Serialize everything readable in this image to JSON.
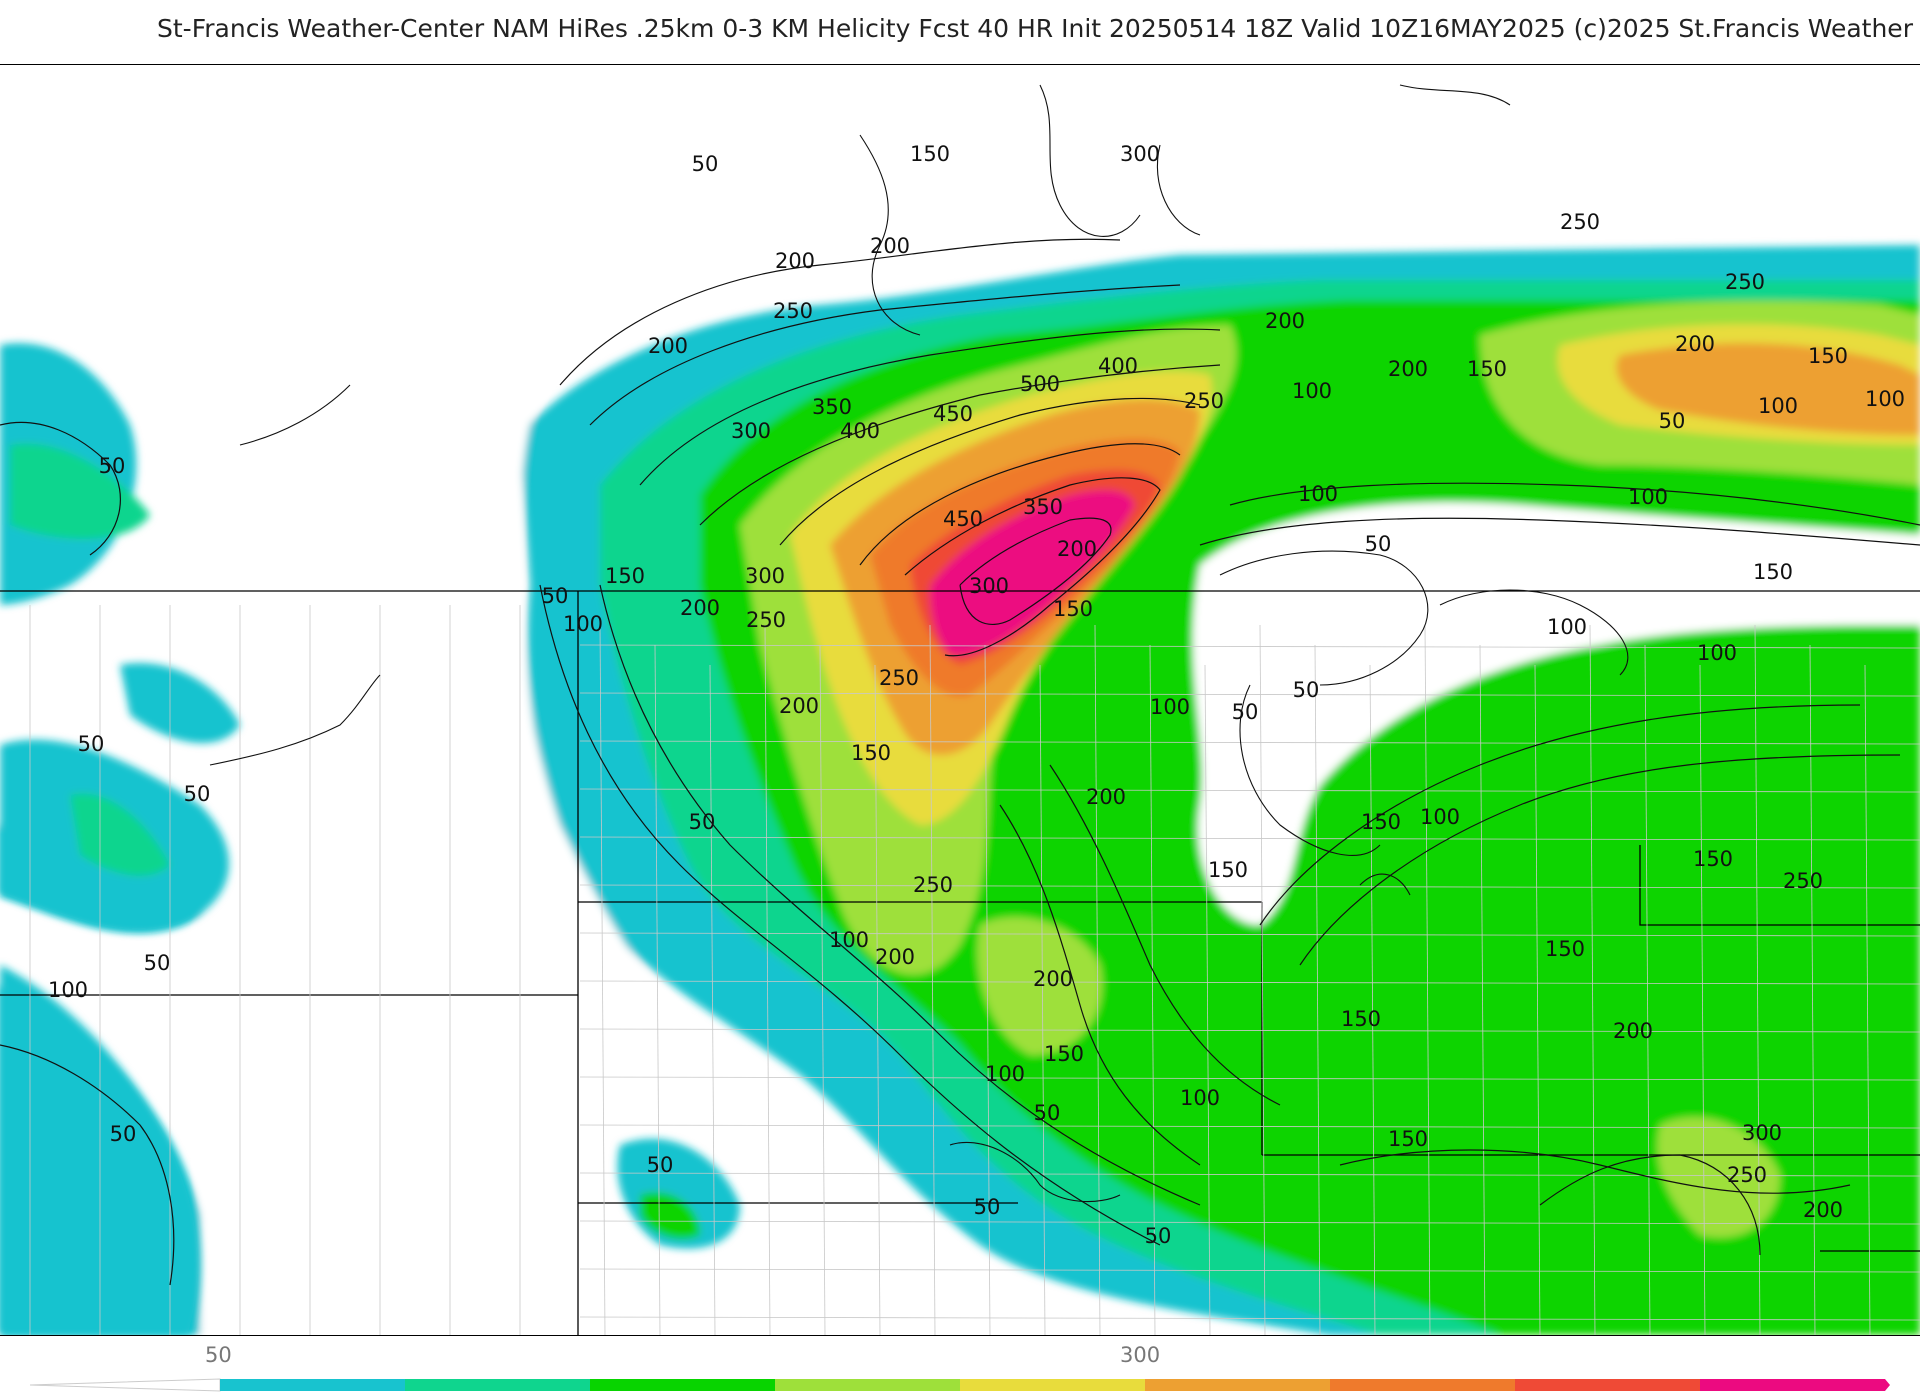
{
  "title": "St-Francis Weather-Center NAM HiRes .25km 0-3 KM Helicity Fcst 40 HR Init 20250514 18Z  Valid 10Z16MAY2025    (c)2025 St.Francis Weather",
  "colors": {
    "c50": "#18c3cf",
    "c100": "#0fd58e",
    "c150": "#08d400",
    "c200": "#9ee03a",
    "c250": "#e8dc3c",
    "c300": "#eda032",
    "c350": "#ef7a2c",
    "c400": "#ef4a36",
    "c450": "#ec0a80"
  },
  "colorbar": {
    "labels": [
      "50",
      "300"
    ]
  },
  "contour_labels": [
    "50",
    "100",
    "150",
    "200",
    "250",
    "300",
    "350",
    "400",
    "450",
    "500"
  ]
}
